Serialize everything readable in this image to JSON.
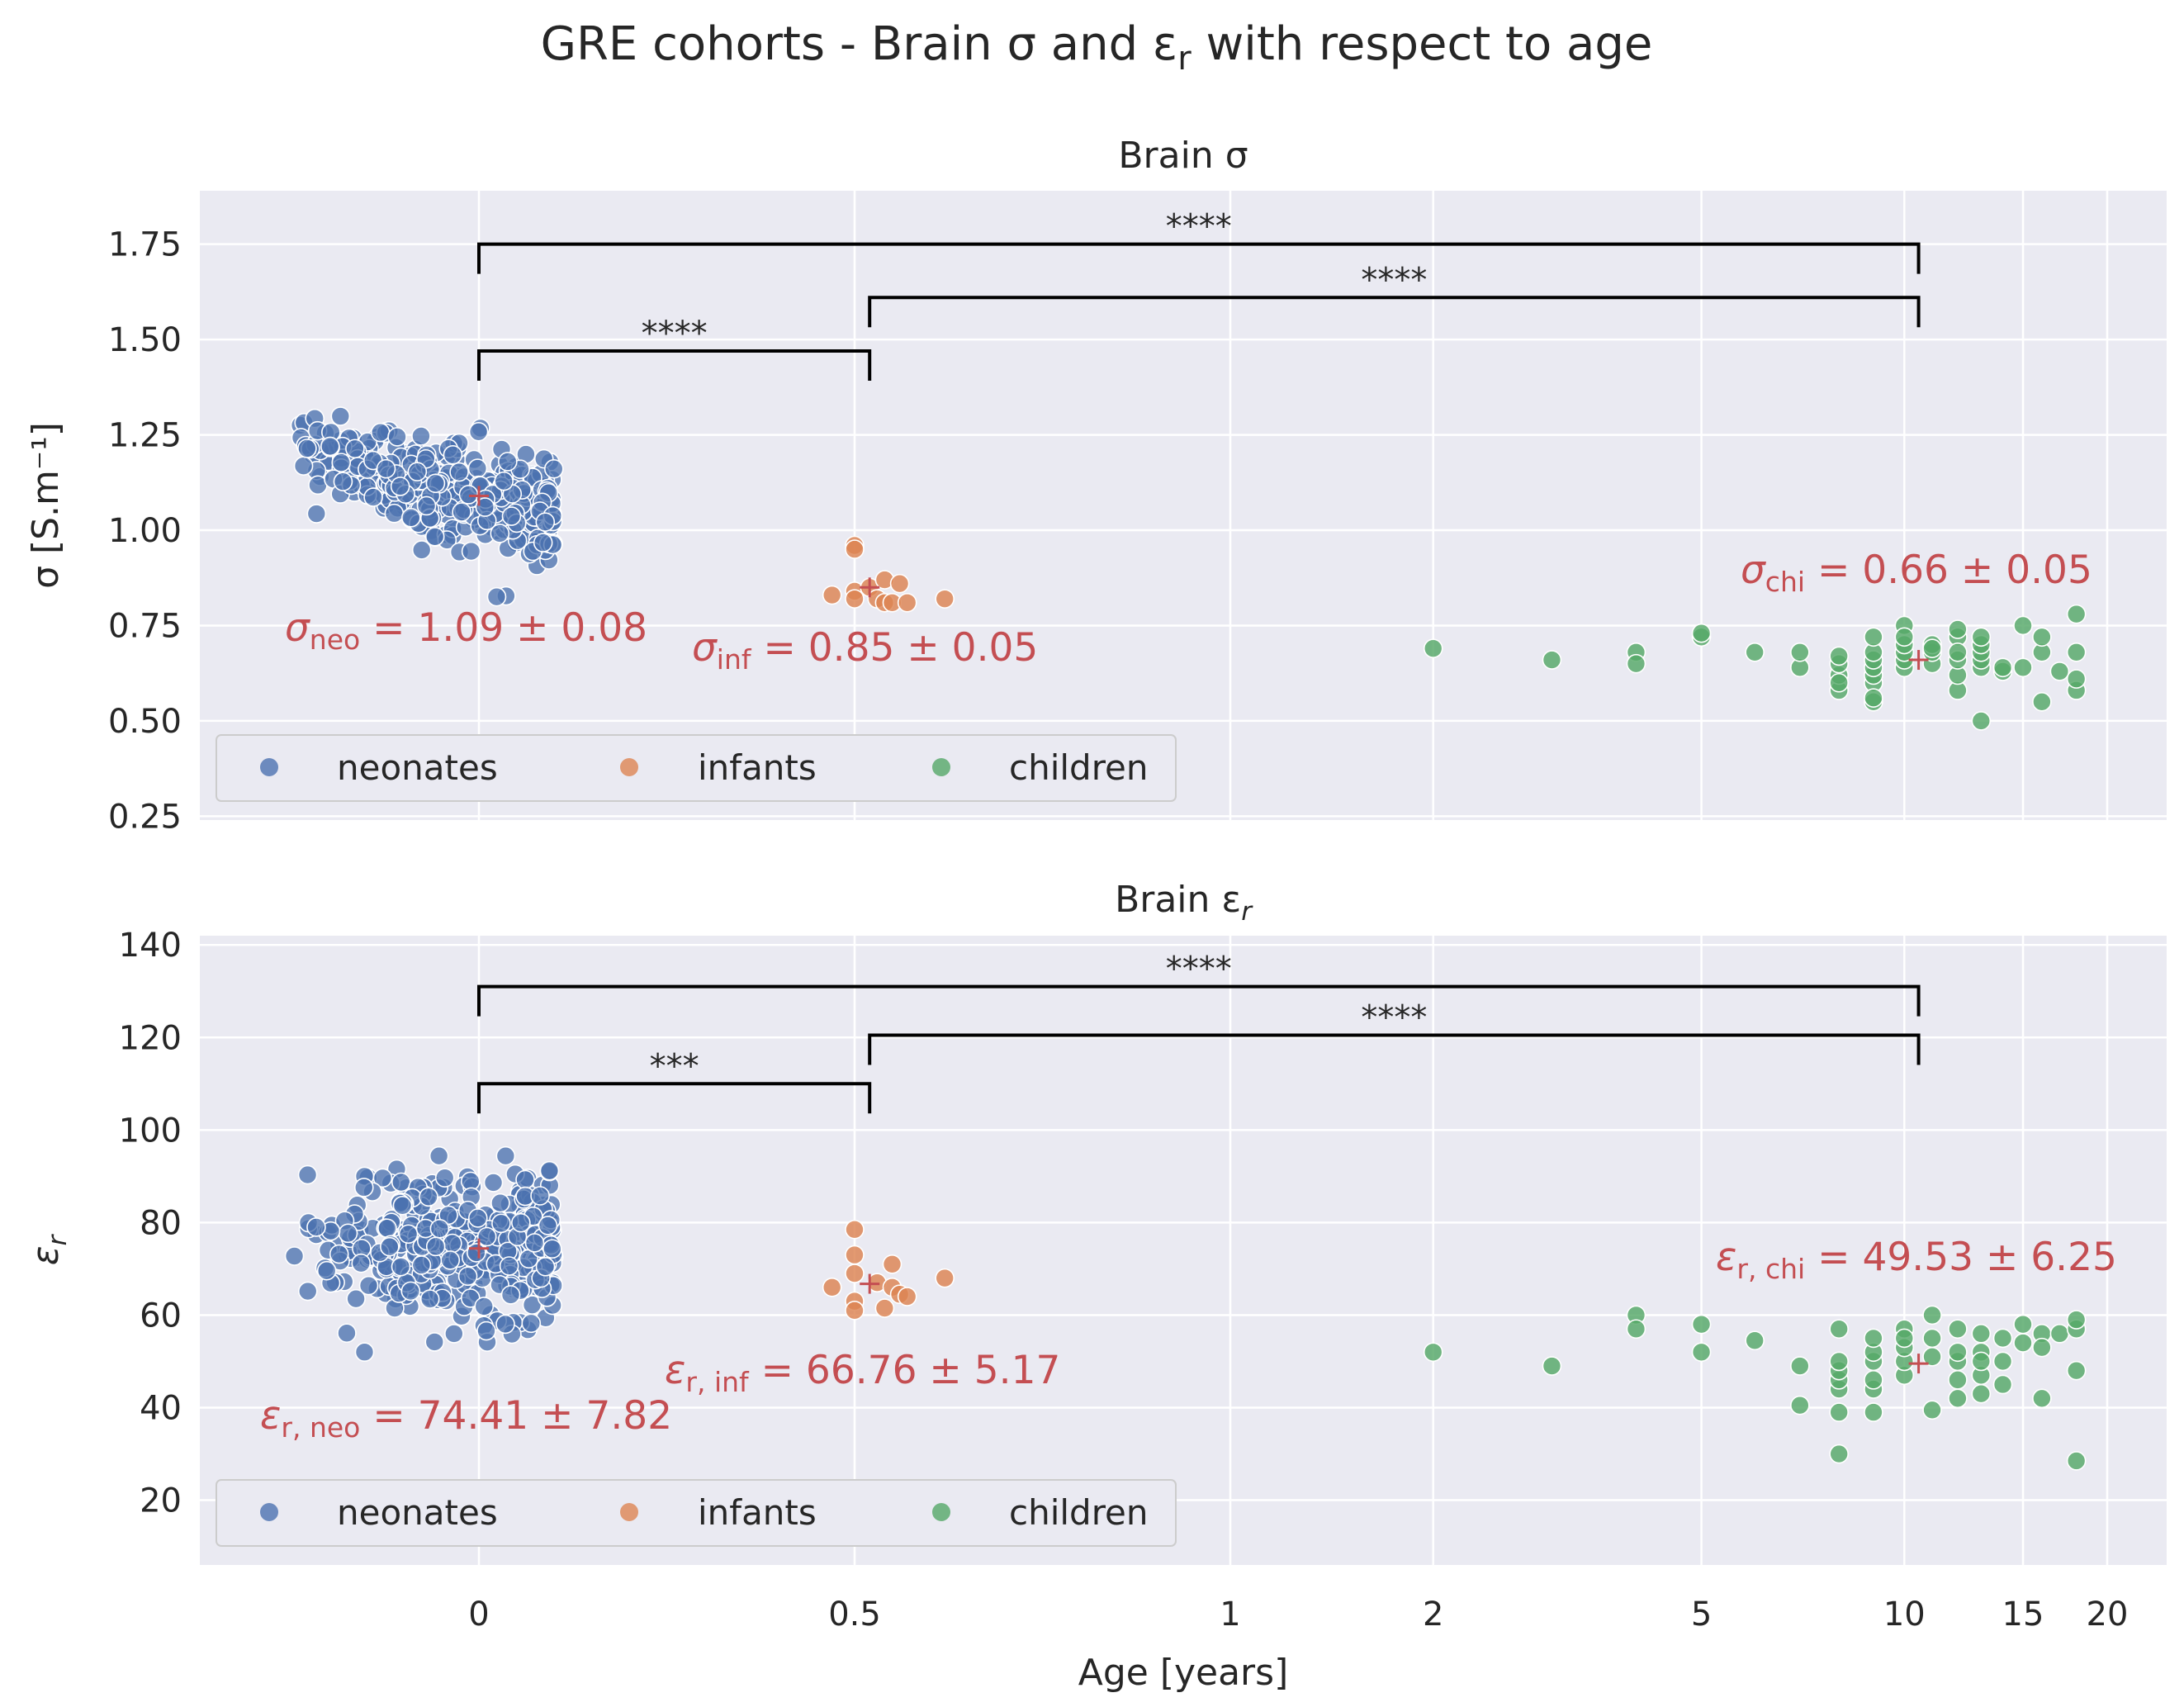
{
  "figure": {
    "suptitle": "GRE cohorts - Brain σ and ε",
    "suptitle_sub": "r",
    "suptitle_suffix": " with respect to age",
    "xlabel": "Age [years]"
  },
  "colors": {
    "background": "#EAEAF2",
    "grid": "#FFFFFF",
    "neonates": "#4C72B0",
    "infants": "#DD8452",
    "children": "#55A868",
    "annotation": "#C44E52",
    "bracket": "#000000"
  },
  "legend": {
    "position": "lower left",
    "entries": [
      "neonates",
      "infants",
      "children"
    ]
  },
  "x_axis": {
    "ticks": [
      {
        "value": 0,
        "label": "0"
      },
      {
        "value": 0.5,
        "label": "0.5"
      },
      {
        "value": 1,
        "label": "1"
      },
      {
        "value": 2,
        "label": "2"
      },
      {
        "value": 5,
        "label": "5"
      },
      {
        "value": 10,
        "label": "10"
      },
      {
        "value": 15,
        "label": "15"
      },
      {
        "value": 20,
        "label": "20"
      }
    ]
  },
  "chart_data": [
    {
      "type": "scatter",
      "title": "Brain σ",
      "ylabel": "σ [S.m⁻¹]",
      "ylim": [
        0.24,
        1.89
      ],
      "yticks": [
        "0.25",
        "0.50",
        "0.75",
        "1.00",
        "1.25",
        "1.50",
        "1.75"
      ],
      "grid": true,
      "series": [
        {
          "name": "neonates",
          "mean_marker": {
            "x": 0.0,
            "y": 1.09
          }
        },
        {
          "name": "infants",
          "mean_marker": {
            "x": 0.52,
            "y": 0.85
          },
          "points": [
            [
              0.47,
              0.83
            ],
            [
              0.5,
              0.96
            ],
            [
              0.5,
              0.95
            ],
            [
              0.5,
              0.84
            ],
            [
              0.5,
              0.82
            ],
            [
              0.52,
              0.85
            ],
            [
              0.53,
              0.82
            ],
            [
              0.54,
              0.81
            ],
            [
              0.54,
              0.87
            ],
            [
              0.55,
              0.81
            ],
            [
              0.56,
              0.86
            ],
            [
              0.57,
              0.81
            ],
            [
              0.62,
              0.82
            ]
          ]
        },
        {
          "name": "children",
          "mean_marker": {
            "x": 10.5,
            "y": 0.66
          },
          "points": [
            [
              2,
              0.69
            ],
            [
              3,
              0.66
            ],
            [
              4,
              0.68
            ],
            [
              4,
              0.65
            ],
            [
              5,
              0.72
            ],
            [
              5,
              0.73
            ],
            [
              6,
              0.68
            ],
            [
              7,
              0.64
            ],
            [
              7,
              0.68
            ],
            [
              8,
              0.58
            ],
            [
              8,
              0.62
            ],
            [
              8,
              0.65
            ],
            [
              8,
              0.67
            ],
            [
              8,
              0.6
            ],
            [
              9,
              0.55
            ],
            [
              9,
              0.6
            ],
            [
              9,
              0.62
            ],
            [
              9,
              0.64
            ],
            [
              9,
              0.66
            ],
            [
              9,
              0.68
            ],
            [
              9,
              0.72
            ],
            [
              9,
              0.56
            ],
            [
              10,
              0.64
            ],
            [
              10,
              0.66
            ],
            [
              10,
              0.68
            ],
            [
              10,
              0.7
            ],
            [
              10,
              0.75
            ],
            [
              10,
              0.72
            ],
            [
              11,
              0.65
            ],
            [
              11,
              0.68
            ],
            [
              11,
              0.7
            ],
            [
              11,
              0.69
            ],
            [
              12,
              0.58
            ],
            [
              12,
              0.62
            ],
            [
              12,
              0.66
            ],
            [
              12,
              0.72
            ],
            [
              12,
              0.74
            ],
            [
              12,
              0.68
            ],
            [
              13,
              0.5
            ],
            [
              13,
              0.64
            ],
            [
              13,
              0.66
            ],
            [
              13,
              0.68
            ],
            [
              13,
              0.7
            ],
            [
              13,
              0.72
            ],
            [
              14,
              0.63
            ],
            [
              14,
              0.64
            ],
            [
              15,
              0.64
            ],
            [
              15,
              0.75
            ],
            [
              16,
              0.68
            ],
            [
              16,
              0.72
            ],
            [
              16,
              0.55
            ],
            [
              17,
              0.63
            ],
            [
              18,
              0.58
            ],
            [
              18,
              0.61
            ],
            [
              18,
              0.68
            ],
            [
              18,
              0.78
            ]
          ]
        }
      ],
      "annotations": [
        {
          "group": "neonates",
          "symbol": "σ",
          "sub": "neo",
          "text": " = 1.09 ± 0.08"
        },
        {
          "group": "infants",
          "symbol": "σ",
          "sub": "inf",
          "text": " = 0.85 ± 0.05"
        },
        {
          "group": "children",
          "symbol": "σ",
          "sub": "chi",
          "text": " = 0.66 ± 0.05"
        }
      ],
      "significance": [
        {
          "from": 0.0,
          "to": 10.5,
          "y": 1.75,
          "label": "****"
        },
        {
          "from": 0.52,
          "to": 10.5,
          "y": 1.61,
          "label": "****"
        },
        {
          "from": 0.0,
          "to": 0.52,
          "y": 1.47,
          "label": "****"
        }
      ]
    },
    {
      "type": "scatter",
      "title": "Brain ε",
      "title_sub": "r",
      "ylabel": "ε",
      "ylabel_sub": "r",
      "ylim": [
        6,
        142
      ],
      "yticks": [
        "20",
        "40",
        "60",
        "80",
        "100",
        "120",
        "140"
      ],
      "grid": true,
      "series": [
        {
          "name": "neonates",
          "mean_marker": {
            "x": 0.0,
            "y": 74.41
          }
        },
        {
          "name": "infants",
          "mean_marker": {
            "x": 0.52,
            "y": 66.76
          },
          "points": [
            [
              0.47,
              66
            ],
            [
              0.5,
              78.5
            ],
            [
              0.5,
              73
            ],
            [
              0.5,
              69
            ],
            [
              0.5,
              63
            ],
            [
              0.5,
              61
            ],
            [
              0.53,
              67
            ],
            [
              0.54,
              61.5
            ],
            [
              0.55,
              71
            ],
            [
              0.55,
              66
            ],
            [
              0.56,
              64.5
            ],
            [
              0.57,
              64
            ],
            [
              0.62,
              68
            ]
          ]
        },
        {
          "name": "children",
          "mean_marker": {
            "x": 10.5,
            "y": 49.53
          },
          "points": [
            [
              2,
              52
            ],
            [
              3,
              49
            ],
            [
              4,
              60
            ],
            [
              4,
              57
            ],
            [
              5,
              58
            ],
            [
              5,
              52
            ],
            [
              6,
              54.5
            ],
            [
              7,
              49
            ],
            [
              7,
              40.5
            ],
            [
              8,
              30
            ],
            [
              8,
              39
            ],
            [
              8,
              44
            ],
            [
              8,
              46
            ],
            [
              8,
              48
            ],
            [
              8,
              50
            ],
            [
              8,
              57
            ],
            [
              9,
              39
            ],
            [
              9,
              44
            ],
            [
              9,
              46
            ],
            [
              9,
              50
            ],
            [
              9,
              52
            ],
            [
              9,
              55
            ],
            [
              10,
              47
            ],
            [
              10,
              50
            ],
            [
              10,
              53
            ],
            [
              10,
              57
            ],
            [
              10,
              55
            ],
            [
              11,
              39.5
            ],
            [
              11,
              51
            ],
            [
              11,
              55
            ],
            [
              11,
              60
            ],
            [
              12,
              42
            ],
            [
              12,
              46
            ],
            [
              12,
              50
            ],
            [
              12,
              52
            ],
            [
              12,
              57
            ],
            [
              13,
              43
            ],
            [
              13,
              47
            ],
            [
              13,
              52
            ],
            [
              13,
              56
            ],
            [
              13,
              50
            ],
            [
              14,
              45
            ],
            [
              14,
              50
            ],
            [
              14,
              55
            ],
            [
              15,
              54
            ],
            [
              15,
              58
            ],
            [
              16,
              42
            ],
            [
              16,
              56
            ],
            [
              16,
              53
            ],
            [
              17,
              56
            ],
            [
              18,
              28.5
            ],
            [
              18,
              48
            ],
            [
              18,
              57
            ],
            [
              18,
              59
            ]
          ]
        }
      ],
      "annotations": [
        {
          "group": "neonates",
          "symbol": "ε",
          "sub": "r, neo",
          "text": " = 74.41 ± 7.82"
        },
        {
          "group": "infants",
          "symbol": "ε",
          "sub": "r, inf",
          "text": " = 66.76 ± 5.17"
        },
        {
          "group": "children",
          "symbol": "ε",
          "sub": "r, chi",
          "text": " = 49.53 ± 6.25"
        }
      ],
      "significance": [
        {
          "from": 0.0,
          "to": 10.5,
          "y": 131,
          "label": "****"
        },
        {
          "from": 0.52,
          "to": 10.5,
          "y": 120.5,
          "label": "****"
        },
        {
          "from": 0.0,
          "to": 0.52,
          "y": 110,
          "label": "***"
        }
      ]
    }
  ]
}
